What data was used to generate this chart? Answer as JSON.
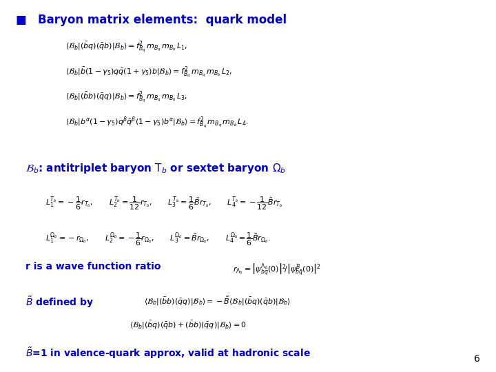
{
  "title": "Baryon matrix elements:  quark model",
  "title_color": "#0000CC",
  "background_color": "#FFFFFF",
  "page_number": "6",
  "blue": "#0000CC",
  "fs_title": 12,
  "fs_eq": 8,
  "fs_large": 10
}
